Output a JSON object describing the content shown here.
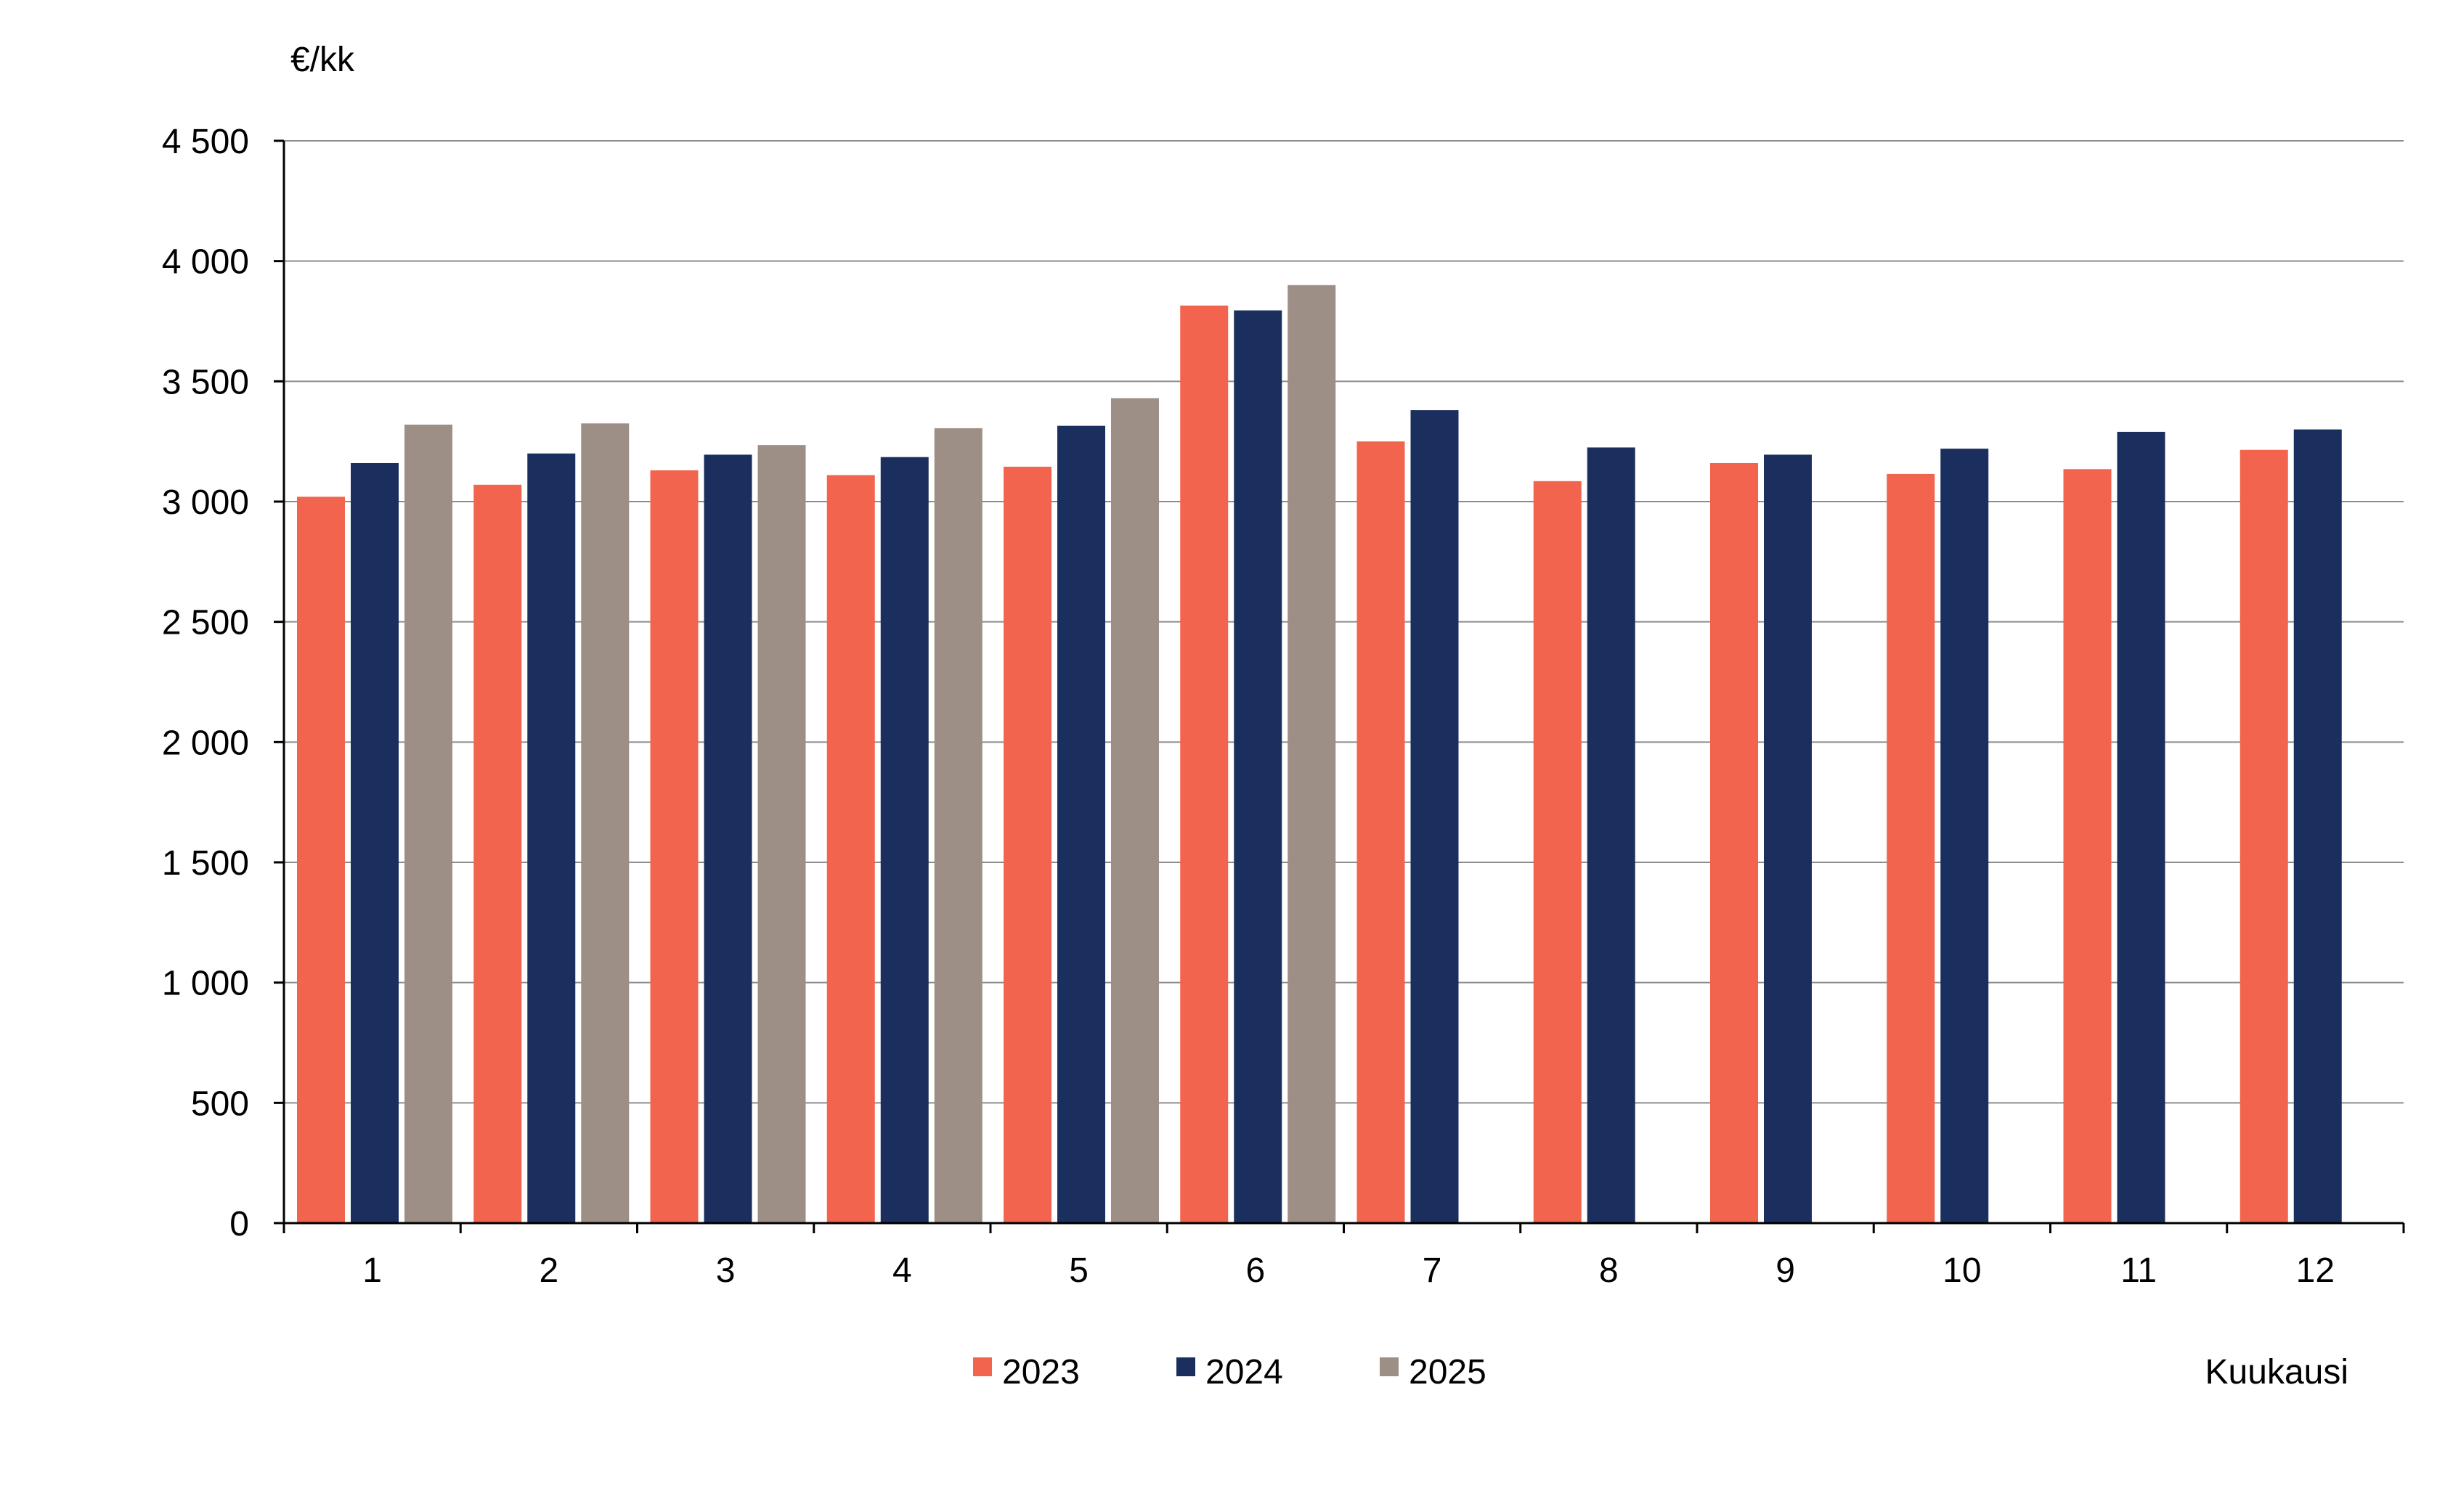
{
  "chart_data": {
    "type": "bar",
    "title": "",
    "y_unit_label": "€/kk",
    "xlabel": "Kuukausi",
    "ylabel": "",
    "ylim": [
      0,
      4500
    ],
    "yticks": [
      0,
      500,
      1000,
      1500,
      2000,
      2500,
      3000,
      3500,
      4000,
      4500
    ],
    "ytick_labels": [
      "0",
      "500",
      "1 000",
      "1 500",
      "2 000",
      "2 500",
      "3 000",
      "3 500",
      "4 000",
      "4 500"
    ],
    "categories": [
      "1",
      "2",
      "3",
      "4",
      "5",
      "6",
      "7",
      "8",
      "9",
      "10",
      "11",
      "12"
    ],
    "grid": true,
    "legend_position": "bottom",
    "series": [
      {
        "name": "2023",
        "color": "#f2644e",
        "values": [
          3020,
          3070,
          3130,
          3110,
          3145,
          3815,
          3250,
          3085,
          3160,
          3115,
          3135,
          3215
        ]
      },
      {
        "name": "2024",
        "color": "#1b2f5e",
        "values": [
          3160,
          3200,
          3195,
          3185,
          3315,
          3795,
          3380,
          3225,
          3195,
          3220,
          3290,
          3300
        ]
      },
      {
        "name": "2025",
        "color": "#9e8f86",
        "values": [
          3320,
          3325,
          3235,
          3305,
          3430,
          3900,
          null,
          null,
          null,
          null,
          null,
          null
        ]
      }
    ]
  }
}
